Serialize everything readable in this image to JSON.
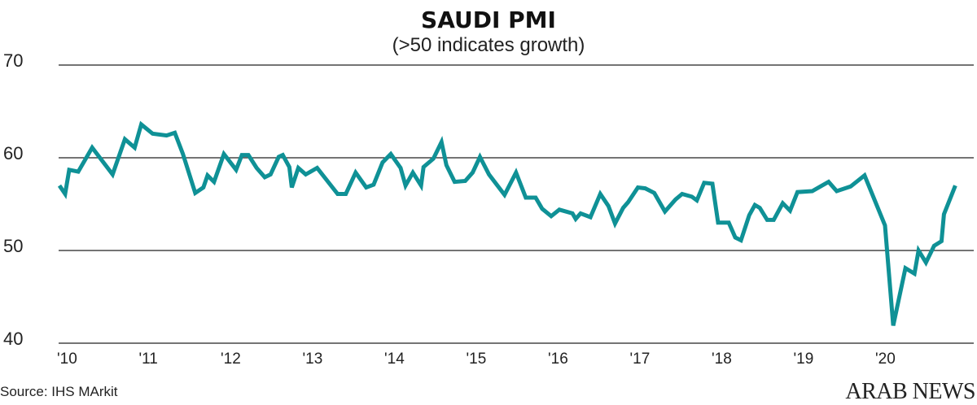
{
  "chart_data": {
    "type": "line",
    "title": "SAUDI PMI",
    "subtitle": "(>50 indicates growth)",
    "xlabel": "",
    "ylabel": "",
    "ylim": [
      40,
      70
    ],
    "yticks": [
      40,
      50,
      60,
      70
    ],
    "ytick_labels": [
      "40",
      "50",
      "60",
      "70"
    ],
    "xlim": [
      2010,
      2021
    ],
    "xticks": [
      2010,
      2011,
      2012,
      2013,
      2014,
      2015,
      2016,
      2017,
      2018,
      2019,
      2020
    ],
    "xtick_labels": [
      "'10",
      "'11",
      "'12",
      "'13",
      "'14",
      "'15",
      "'16",
      "'17",
      "'18",
      "'19",
      "'20"
    ],
    "grid": "horizontal",
    "line_color": "#0f9196",
    "series": [
      {
        "name": "Saudi PMI",
        "points": [
          [
            2009.93,
            57.0
          ],
          [
            2010.0,
            56.1
          ],
          [
            2010.05,
            58.7
          ],
          [
            2010.16,
            58.5
          ],
          [
            2010.33,
            61.1
          ],
          [
            2010.58,
            58.2
          ],
          [
            2010.73,
            62.0
          ],
          [
            2010.85,
            61.1
          ],
          [
            2010.93,
            63.6
          ],
          [
            2011.07,
            62.6
          ],
          [
            2011.24,
            62.4
          ],
          [
            2011.34,
            62.7
          ],
          [
            2011.44,
            60.4
          ],
          [
            2011.59,
            56.2
          ],
          [
            2011.69,
            56.8
          ],
          [
            2011.74,
            58.1
          ],
          [
            2011.82,
            57.4
          ],
          [
            2011.94,
            60.4
          ],
          [
            2012.09,
            58.7
          ],
          [
            2012.16,
            60.3
          ],
          [
            2012.24,
            60.3
          ],
          [
            2012.34,
            58.9
          ],
          [
            2012.44,
            57.9
          ],
          [
            2012.51,
            58.2
          ],
          [
            2012.61,
            60.1
          ],
          [
            2012.66,
            60.3
          ],
          [
            2012.74,
            59.0
          ],
          [
            2012.77,
            56.8
          ],
          [
            2012.85,
            58.9
          ],
          [
            2012.94,
            58.2
          ],
          [
            2013.08,
            58.9
          ],
          [
            2013.33,
            56.1
          ],
          [
            2013.43,
            56.1
          ],
          [
            2013.55,
            58.4
          ],
          [
            2013.68,
            56.8
          ],
          [
            2013.77,
            57.1
          ],
          [
            2013.88,
            59.5
          ],
          [
            2013.98,
            60.4
          ],
          [
            2014.1,
            58.9
          ],
          [
            2014.16,
            57.0
          ],
          [
            2014.25,
            58.4
          ],
          [
            2014.35,
            57.0
          ],
          [
            2014.38,
            59.0
          ],
          [
            2014.5,
            59.9
          ],
          [
            2014.6,
            61.7
          ],
          [
            2014.66,
            59.2
          ],
          [
            2014.76,
            57.4
          ],
          [
            2014.89,
            57.5
          ],
          [
            2014.98,
            58.4
          ],
          [
            2015.07,
            60.1
          ],
          [
            2015.18,
            58.2
          ],
          [
            2015.37,
            56.0
          ],
          [
            2015.51,
            58.4
          ],
          [
            2015.63,
            55.7
          ],
          [
            2015.75,
            55.7
          ],
          [
            2015.83,
            54.5
          ],
          [
            2015.94,
            53.7
          ],
          [
            2016.04,
            54.4
          ],
          [
            2016.2,
            54.0
          ],
          [
            2016.24,
            53.4
          ],
          [
            2016.3,
            54.0
          ],
          [
            2016.42,
            53.6
          ],
          [
            2016.54,
            56.1
          ],
          [
            2016.64,
            54.8
          ],
          [
            2016.72,
            52.9
          ],
          [
            2016.82,
            54.6
          ],
          [
            2016.88,
            55.2
          ],
          [
            2017.0,
            56.8
          ],
          [
            2017.09,
            56.7
          ],
          [
            2017.2,
            56.2
          ],
          [
            2017.33,
            54.2
          ],
          [
            2017.46,
            55.5
          ],
          [
            2017.54,
            56.1
          ],
          [
            2017.66,
            55.8
          ],
          [
            2017.72,
            55.4
          ],
          [
            2017.81,
            57.3
          ],
          [
            2017.91,
            57.2
          ],
          [
            2017.98,
            53.0
          ],
          [
            2018.11,
            53.0
          ],
          [
            2018.19,
            51.4
          ],
          [
            2018.26,
            51.1
          ],
          [
            2018.36,
            53.8
          ],
          [
            2018.43,
            54.9
          ],
          [
            2018.49,
            54.6
          ],
          [
            2018.58,
            53.3
          ],
          [
            2018.66,
            53.3
          ],
          [
            2018.77,
            55.1
          ],
          [
            2018.86,
            54.3
          ],
          [
            2018.95,
            56.3
          ],
          [
            2019.13,
            56.4
          ],
          [
            2019.25,
            57.0
          ],
          [
            2019.33,
            57.4
          ],
          [
            2019.43,
            56.4
          ],
          [
            2019.6,
            56.9
          ],
          [
            2019.77,
            58.1
          ],
          [
            2020.02,
            52.7
          ],
          [
            2020.12,
            41.9
          ],
          [
            2020.27,
            48.1
          ],
          [
            2020.38,
            47.5
          ],
          [
            2020.43,
            50.0
          ],
          [
            2020.52,
            48.7
          ],
          [
            2020.62,
            50.5
          ],
          [
            2020.71,
            51.0
          ],
          [
            2020.74,
            53.9
          ],
          [
            2020.88,
            57.0
          ]
        ]
      }
    ]
  },
  "source": "Source: IHS MArkit",
  "logo_text": "ARAB NEWS"
}
